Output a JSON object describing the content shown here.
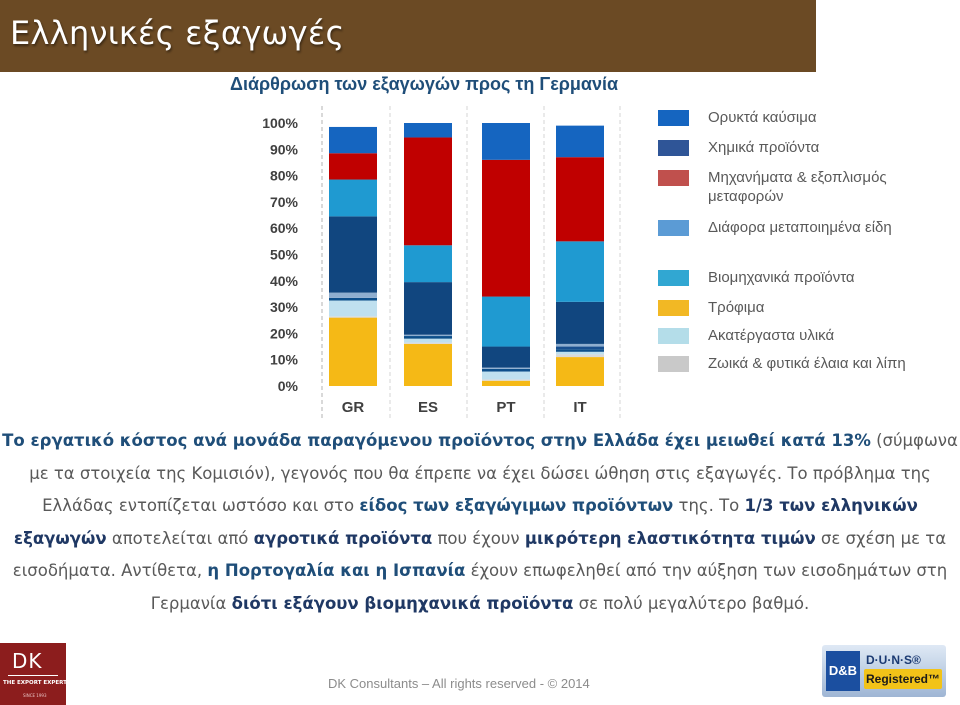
{
  "header": {
    "title": "Ελληνικές εξαγωγές"
  },
  "chart_data": {
    "type": "bar",
    "stacked": true,
    "title": "Διάρθρωση των εξαγωγών προς τη Γερμανία",
    "categories": [
      "GR",
      "ES",
      "PT",
      "IT"
    ],
    "yticks": [
      "0%",
      "10%",
      "20%",
      "30%",
      "40%",
      "50%",
      "60%",
      "70%",
      "80%",
      "90%",
      "100%"
    ],
    "ylim": [
      0,
      100
    ],
    "grid": false,
    "legend_position": "right",
    "series": [
      {
        "name": "Τρόφιμα",
        "color": "#f5b916",
        "values": [
          26,
          16,
          2,
          11
        ]
      },
      {
        "name": "Ζωικά & φυτικά έλαια και λίπη",
        "color": "#d9d9d9",
        "values": [
          0.5,
          0.5,
          0.5,
          1
        ]
      },
      {
        "name": "Ακατέργαστα υλικά",
        "color": "#bfe0ef",
        "values": [
          6,
          1.5,
          3,
          1
        ]
      },
      {
        "name": "Χημικά προϊόντα",
        "color": "#0d4f8b",
        "values": [
          1,
          1,
          1,
          1
        ]
      },
      {
        "name": "Χημικά προϊόντα",
        "color": "#184f8f",
        "values": [
          0,
          0,
          0,
          1
        ]
      },
      {
        "name": "Διάφορα μεταποιημένα είδη",
        "color": "#8faecf",
        "values": [
          2,
          0.5,
          0.5,
          1
        ]
      },
      {
        "name": "Χημικά προϊόντα",
        "color": "#11467f",
        "values": [
          29,
          20,
          8,
          16
        ]
      },
      {
        "name": "Βιομηχανικά προϊόντα",
        "color": "#1f9ad1",
        "values": [
          14,
          14,
          19,
          23
        ]
      },
      {
        "name": "Μηχανήματα & εξοπλισμός μεταφορών",
        "color": "#c00000",
        "values": [
          10,
          41,
          52,
          32
        ]
      },
      {
        "name": "Ορυκτά καύσιμα",
        "color": "#1565c0",
        "values": [
          10,
          5.5,
          14,
          12
        ]
      }
    ]
  },
  "legend": [
    {
      "label": "Ορυκτά καύσιμα",
      "color": "#1565c0"
    },
    {
      "label": "Χημικά προϊόντα",
      "color": "#2f5597"
    },
    {
      "label": "Μηχανήματα & εξοπλισμός μεταφορών",
      "color": "#c0504d"
    },
    {
      "label": "Διάφορα μεταποιημένα είδη",
      "color": "#5b9bd5"
    },
    {
      "label": "Βιομηχανικά προϊόντα",
      "color": "#31a7d2"
    },
    {
      "label": "Τρόφιμα",
      "color": "#f2b824"
    },
    {
      "label": "Ακατέργαστα υλικά",
      "color": "#b4dde9"
    },
    {
      "label": "Ζωικά & φυτικά έλαια και λίπη",
      "color": "#c9c9c9"
    }
  ],
  "body": {
    "p1": "Το εργατικό κόστος ανά μονάδα παραγόμενου προϊόντος στην Ελλάδα έχει μειωθεί κατά 13%",
    "p2": " (σύμφωνα με τα στοιχεία της Κομισιόν), γεγονός που θα έπρεπε να έχει δώσει ώθηση στις εξαγωγές. Το πρόβλημα της Ελλάδας εντοπίζεται ωστόσο και στο ",
    "p3": "είδος των εξαγώγιμων προϊόντων",
    "p4": " της. Το ",
    "p5": "1/3 των ελληνικών εξαγωγών",
    "p6": " αποτελείται από ",
    "p7": "αγροτικά προϊόντα",
    "p8": " που έχουν ",
    "p9": "μικρότερη ελαστικότητα τιμών",
    "p10": " σε σχέση με τα εισοδήματα. Αντίθετα, ",
    "p11": "η Πορτογαλία και η Ισπανία",
    "p12": " έχουν επωφεληθεί από την αύξηση των εισοδημάτων στη Γερμανία ",
    "p13": "διότι εξάγουν βιομηχανικά προϊόντα",
    "p14": " σε πολύ μεγαλύτερο βαθμό."
  },
  "footer": {
    "text": "DK Consultants – All rights reserved - © 2014"
  },
  "logo_left": {
    "mark": "DK",
    "tagline": "THE EXPORT EXPERTS!",
    "since": "SINCE 1993"
  },
  "duns": {
    "db": "D&B",
    "line1": "D·U·N·S®",
    "line2": "Registered™"
  }
}
